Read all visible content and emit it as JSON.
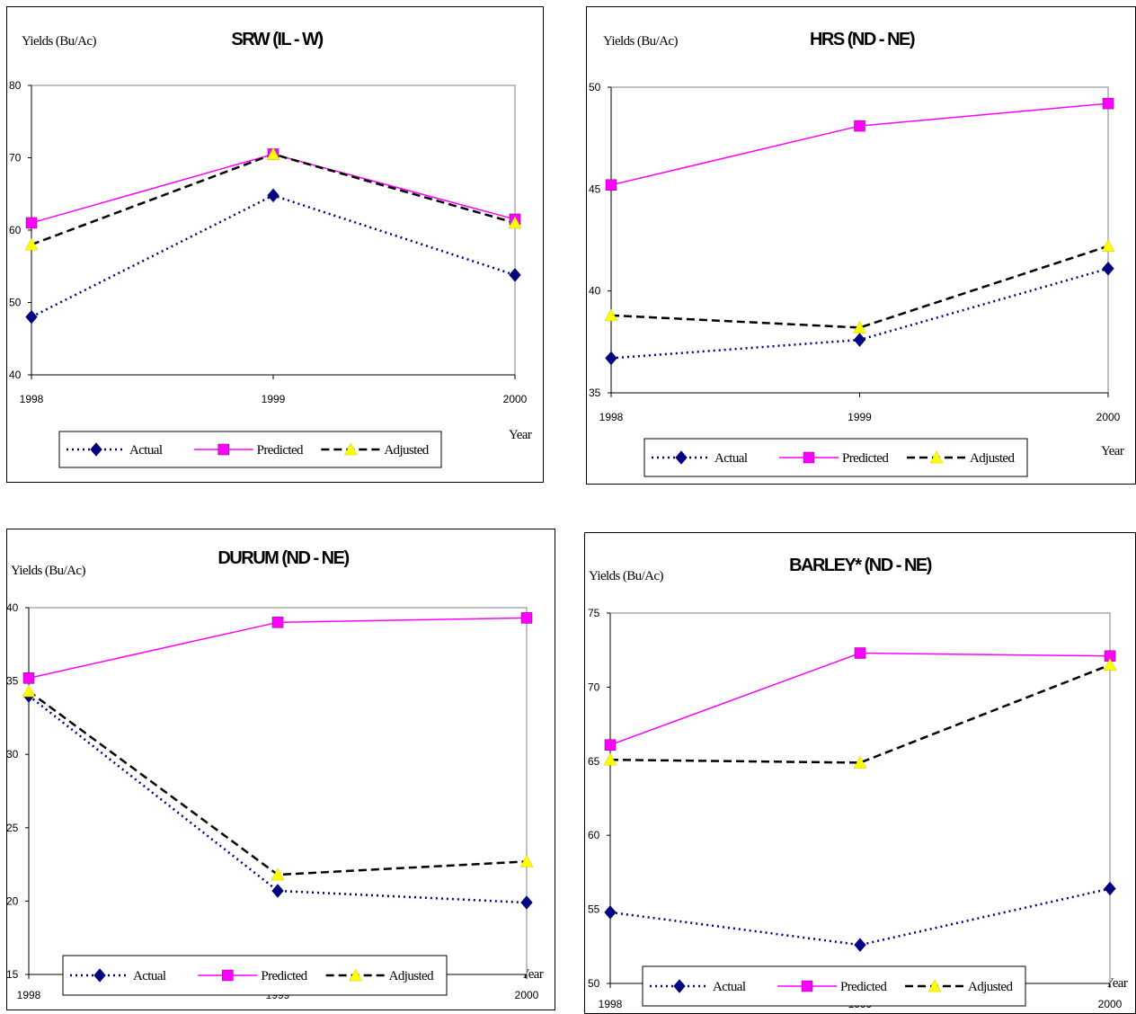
{
  "chart_data": [
    {
      "type": "line",
      "title": "SRW (IL - W)",
      "ylabel": "Yields (Bu/Ac)",
      "xlabel": "Year",
      "categories": [
        "1998",
        "1999",
        "2000"
      ],
      "ylim": [
        40,
        80
      ],
      "yticks": [
        "40",
        "50",
        "60",
        "70",
        "80"
      ],
      "grid": false,
      "legend": "bottom",
      "series": [
        {
          "name": "Actual",
          "values": [
            48.0,
            64.8,
            53.8
          ],
          "color": "#000080",
          "marker": "diamond",
          "dash": "dotted"
        },
        {
          "name": "Predicted",
          "values": [
            61.0,
            70.5,
            61.5
          ],
          "color": "#FF00FF",
          "marker": "square",
          "dash": "solid"
        },
        {
          "name": "Adjusted",
          "values": [
            58.0,
            70.5,
            61.0
          ],
          "color": "#FFFF00",
          "marker": "triangle",
          "dash": "dashed"
        }
      ]
    },
    {
      "type": "line",
      "title": "HRS (ND - NE)",
      "ylabel": "Yields (Bu/Ac)",
      "xlabel": "Year",
      "categories": [
        "1998",
        "1999",
        "2000"
      ],
      "ylim": [
        35,
        50
      ],
      "yticks": [
        "35",
        "40",
        "45",
        "50"
      ],
      "grid": false,
      "legend": "bottom",
      "series": [
        {
          "name": "Actual",
          "values": [
            36.7,
            37.6,
            41.1
          ],
          "color": "#000080",
          "marker": "diamond",
          "dash": "dotted"
        },
        {
          "name": "Predicted",
          "values": [
            45.2,
            48.1,
            49.2
          ],
          "color": "#FF00FF",
          "marker": "square",
          "dash": "solid"
        },
        {
          "name": "Adjusted",
          "values": [
            38.8,
            38.2,
            42.2
          ],
          "color": "#FFFF00",
          "marker": "triangle",
          "dash": "dashed"
        }
      ]
    },
    {
      "type": "line",
      "title": "DURUM (ND - NE)",
      "ylabel": "Yields (Bu/Ac)",
      "xlabel": "Year",
      "categories": [
        "1998",
        "1999",
        "2000"
      ],
      "ylim": [
        15,
        40
      ],
      "yticks": [
        "15",
        "20",
        "25",
        "30",
        "35",
        "40"
      ],
      "grid": false,
      "legend": "bottom",
      "series": [
        {
          "name": "Actual",
          "values": [
            34.0,
            20.7,
            19.9
          ],
          "color": "#000080",
          "marker": "diamond",
          "dash": "dotted"
        },
        {
          "name": "Predicted",
          "values": [
            35.2,
            39.0,
            39.3
          ],
          "color": "#FF00FF",
          "marker": "square",
          "dash": "solid"
        },
        {
          "name": "Adjusted",
          "values": [
            34.3,
            21.8,
            22.7
          ],
          "color": "#FFFF00",
          "marker": "triangle",
          "dash": "dashed"
        }
      ]
    },
    {
      "type": "line",
      "title": "BARLEY* (ND - NE)",
      "ylabel": "Yields (Bu/Ac)",
      "xlabel": "Year",
      "categories": [
        "1998",
        "1999",
        "2000"
      ],
      "ylim": [
        50,
        75
      ],
      "yticks": [
        "50",
        "55",
        "60",
        "65",
        "70",
        "75"
      ],
      "grid": false,
      "legend": "bottom",
      "series": [
        {
          "name": "Actual",
          "values": [
            54.8,
            52.6,
            56.4
          ],
          "color": "#000080",
          "marker": "diamond",
          "dash": "dotted"
        },
        {
          "name": "Predicted",
          "values": [
            66.1,
            72.3,
            72.1
          ],
          "color": "#FF00FF",
          "marker": "square",
          "dash": "solid"
        },
        {
          "name": "Adjusted",
          "values": [
            65.1,
            64.9,
            71.5
          ],
          "color": "#FFFF00",
          "marker": "triangle",
          "dash": "dashed"
        }
      ]
    }
  ]
}
